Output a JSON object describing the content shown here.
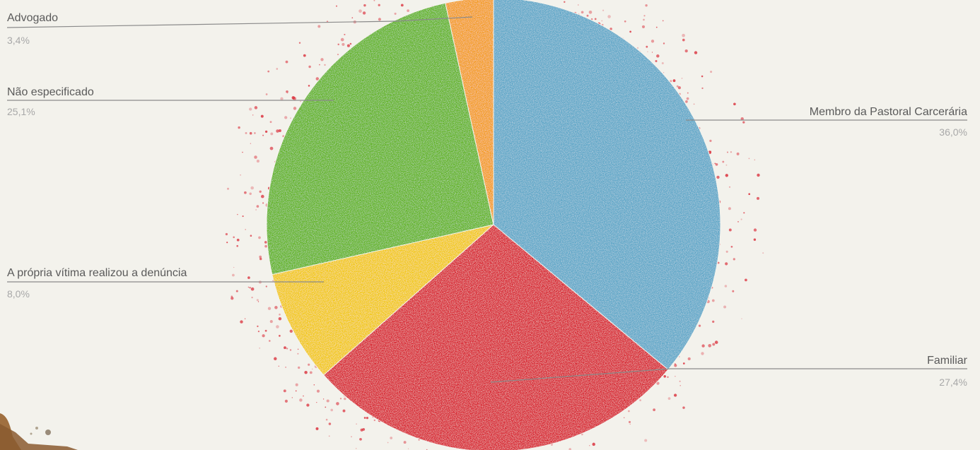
{
  "chart_data": {
    "type": "pie",
    "slices": [
      {
        "label": "Membro da Pastoral Carcerária",
        "value": 36.0,
        "value_label": "36,0%",
        "color": "#5ea7c8"
      },
      {
        "label": "Familiar",
        "value": 27.4,
        "value_label": "27,4%",
        "color": "#d8212e"
      },
      {
        "label": "A própria vítima realizou a denúncia",
        "value": 8.0,
        "value_label": "8,0%",
        "color": "#f2c80f"
      },
      {
        "label": "Não especificado",
        "value": 25.1,
        "value_label": "25,1%",
        "color": "#62b424"
      },
      {
        "label": "Advogado",
        "value": 3.4,
        "value_label": "3,4%",
        "color": "#f39c1f"
      }
    ],
    "start": "top",
    "direction": "clockwise"
  }
}
